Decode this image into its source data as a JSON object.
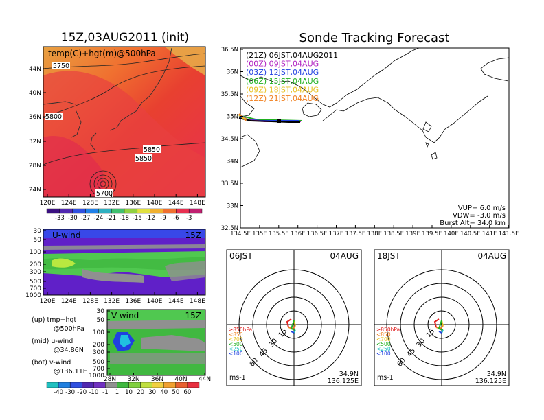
{
  "top_left": {
    "title": "15Z,03AUG2011 (init)",
    "map_label": "temp(C)+hgt(m)@500hPa",
    "lat_ticks": [
      "44N",
      "40N",
      "36N",
      "32N",
      "28N",
      "24N"
    ],
    "lon_ticks": [
      "120E",
      "124E",
      "128E",
      "132E",
      "136E",
      "140E",
      "144E",
      "148E"
    ],
    "contour_labels": [
      "5750",
      "5800",
      "5850",
      "5850",
      "5700"
    ],
    "colorbar_labels": [
      "-33",
      "-30",
      "-27",
      "-24",
      "-21",
      "-18",
      "-15",
      "-12",
      "-9",
      "-6",
      "-3"
    ]
  },
  "u_wind": {
    "label": "U-wind",
    "time": "15Z",
    "pressure_ticks": [
      "30",
      "50",
      "100",
      "200",
      "300",
      "500",
      "700",
      "1000"
    ],
    "lon_ticks": [
      "120E",
      "124E",
      "128E",
      "132E",
      "136E",
      "140E",
      "144E",
      "148E"
    ]
  },
  "v_wind": {
    "label": "V-wind",
    "time": "15Z",
    "pressure_ticks": [
      "30",
      "50",
      "100",
      "200",
      "300",
      "500",
      "700",
      "1000"
    ],
    "lat_ticks": [
      "28N",
      "32N",
      "36N",
      "40N",
      "44N"
    ]
  },
  "legend_notes": [
    {
      "line1": "(up) tmp+hgt",
      "line2": "@500hPa"
    },
    {
      "line1": "(mid) u-wind",
      "line2": "@34.86N"
    },
    {
      "line1": "(bot) v-wind",
      "line2": "@136.11E"
    }
  ],
  "wind_colorbar_labels": [
    "-40",
    "-30",
    "-20",
    "-10",
    "-1",
    "1",
    "10",
    "20",
    "30",
    "40",
    "50",
    "60"
  ],
  "tracking": {
    "title": "Sonde Tracking Forecast",
    "lat_ticks": [
      "36.5N",
      "36N",
      "35.5N",
      "35N",
      "34.5N",
      "34N",
      "33.5N",
      "33N",
      "32.5N"
    ],
    "lon_ticks": [
      "134.5E",
      "135E",
      "135.5E",
      "136E",
      "136.5E",
      "137E",
      "137.5E",
      "138E",
      "138.5E",
      "139E",
      "139.5E",
      "140E",
      "140.5E",
      "141E",
      "141.5E"
    ],
    "legend": [
      {
        "label": "(21Z) 06JST,04AUG2011",
        "color": "#000000"
      },
      {
        "label": "(00Z) 09JST,04AUG",
        "color": "#b020c0"
      },
      {
        "label": "(03Z) 12JST,04AUG",
        "color": "#2040e0"
      },
      {
        "label": "(06Z) 15JST,04AUG",
        "color": "#20b020"
      },
      {
        "label": "(09Z) 18JST,04AUG",
        "color": "#e8c020"
      },
      {
        "label": "(12Z) 21JST,04AUG",
        "color": "#f08020"
      }
    ],
    "params": [
      "VUP= 6.0 m/s",
      "VDW= -3.0 m/s",
      "Burst Alt= 34.0 km"
    ]
  },
  "hodographs": [
    {
      "time": "06JST",
      "date": "04AUG",
      "lat": "34.9N",
      "lon": "136.125E",
      "unit": "ms-1"
    },
    {
      "time": "18JST",
      "date": "04AUG",
      "lat": "34.9N",
      "lon": "136.125E",
      "unit": "ms-1"
    }
  ],
  "hodo_ring_labels": [
    "15",
    "30",
    "45",
    "60"
  ],
  "hodo_levels": [
    {
      "label": "≥850hPa",
      "color": "#e02020"
    },
    {
      "label": "<850",
      "color": "#f08020"
    },
    {
      "label": "<700",
      "color": "#e8c020"
    },
    {
      "label": "<500",
      "color": "#20b020"
    },
    {
      "label": "<250",
      "color": "#20c0c0"
    },
    {
      "label": "<100",
      "color": "#2040e0"
    }
  ],
  "chart_data": [
    {
      "type": "heatmap",
      "title": "15Z,03AUG2011 (init)",
      "subtitle": "temp(C)+hgt(m)@500hPa",
      "xlim": [
        120,
        149
      ],
      "ylim": [
        22,
        47
      ]
    },
    {
      "type": "heatmap",
      "title": "U-wind",
      "xlim": [
        120,
        149
      ]
    },
    {
      "type": "heatmap",
      "title": "V-wind",
      "xlim": [
        28,
        44
      ]
    },
    {
      "type": "line",
      "title": "Sonde Tracking Forecast",
      "xlim": [
        134.5,
        141.5
      ],
      "ylim": [
        32.5,
        36.5
      ]
    }
  ]
}
